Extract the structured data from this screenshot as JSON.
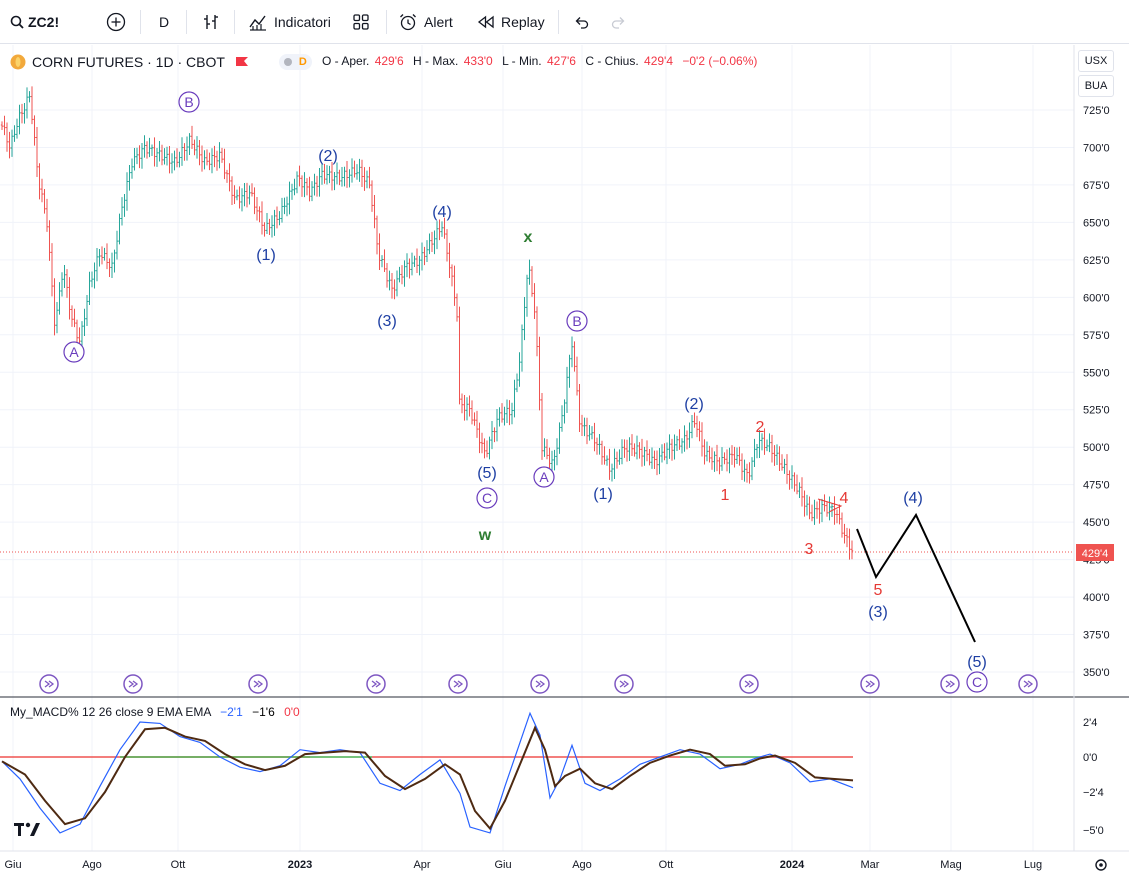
{
  "toolbar": {
    "symbol": "ZC2!",
    "interval": "D",
    "indicators_label": "Indicatori",
    "alert_label": "Alert",
    "replay_label": "Replay"
  },
  "legend": {
    "title": "CORN FUTURES · 1D · CBOT",
    "badge": "D"
  },
  "ohlc": {
    "o_label": "O - Aper.",
    "o_value": "429'6",
    "h_label": "H - Max.",
    "h_value": "433'0",
    "l_label": "L - Min.",
    "l_value": "427'6",
    "c_label": "C - Chius.",
    "c_value": "429'4",
    "change": "−0'2 (−0.06%)"
  },
  "scale_buttons": {
    "currency": "USX",
    "unit": "BUA"
  },
  "price_axis": {
    "labels": [
      "725'0",
      "700'0",
      "675'0",
      "650'0",
      "625'0",
      "600'0",
      "575'0",
      "550'0",
      "525'0",
      "500'0",
      "475'0",
      "450'0",
      "425'0",
      "400'0",
      "375'0",
      "350'0"
    ],
    "current_price": "429'4"
  },
  "macd": {
    "legend_name": "My_MACD% 12 26 close 9 EMA EMA",
    "v1": "−2'1",
    "v2": "−1'6",
    "v3": "0'0",
    "axis_labels": [
      "2'4",
      "0'0",
      "−2'4",
      "−5'0"
    ]
  },
  "time_axis": [
    "Giu",
    "Ago",
    "Ott",
    "2023",
    "Apr",
    "Giu",
    "Ago",
    "Ott",
    "2024",
    "Mar",
    "Mag",
    "Lug"
  ],
  "wave_labels": {
    "A1": "A",
    "B1": "B",
    "one1": "(1)",
    "two1": "(2)",
    "three1": "(3)",
    "four1": "(4)",
    "five1": "(5)",
    "C1": "C",
    "w": "w",
    "x": "x",
    "A2": "A",
    "B2": "B",
    "one2": "(1)",
    "two2": "(2)",
    "r1": "1",
    "r2": "2",
    "r3": "3",
    "r4": "4",
    "r5": "5",
    "three2": "(3)",
    "four2": "(4)",
    "five2": "(5)",
    "C2": "C"
  },
  "colors": {
    "up": "#26a69a",
    "down": "#ef5350",
    "wave_blue": "#1e3fa3",
    "wave_purple": "#6a3dbd",
    "wave_red": "#e53935",
    "wave_green": "#2e7d32",
    "macd_line": "#2962ff",
    "signal_line": "#4e2a12",
    "zero_red": "#ef5350",
    "zero_green": "#4caf50"
  }
}
